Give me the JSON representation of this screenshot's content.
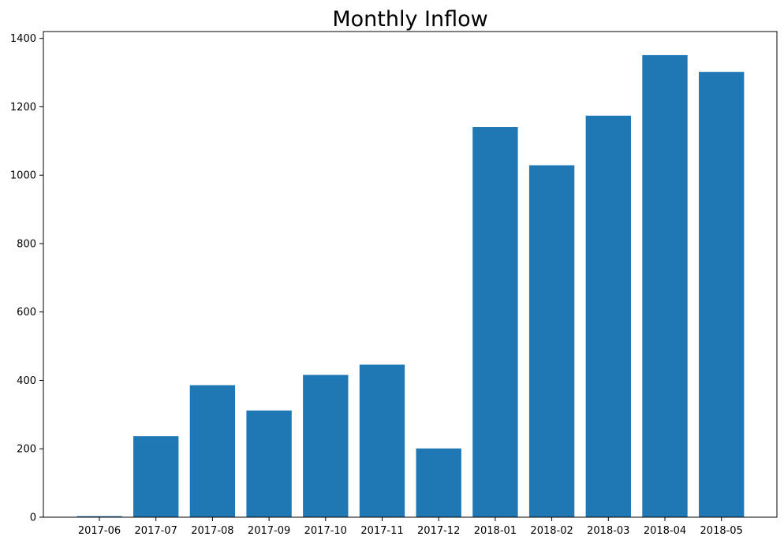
{
  "chart_data": {
    "type": "bar",
    "title": "Monthly Inflow",
    "xlabel": "",
    "ylabel": "",
    "categories": [
      "2017-06",
      "2017-07",
      "2017-08",
      "2017-09",
      "2017-10",
      "2017-11",
      "2017-12",
      "2018-01",
      "2018-02",
      "2018-03",
      "2018-04",
      "2018-05"
    ],
    "values": [
      3,
      237,
      386,
      312,
      416,
      446,
      201,
      1141,
      1029,
      1174,
      1351,
      1302
    ],
    "ylim": [
      0,
      1420
    ],
    "yticks": [
      0,
      200,
      400,
      600,
      800,
      1000,
      1200,
      1400
    ],
    "grid": false,
    "legend": "none",
    "bar_color": "#1f77b4"
  }
}
